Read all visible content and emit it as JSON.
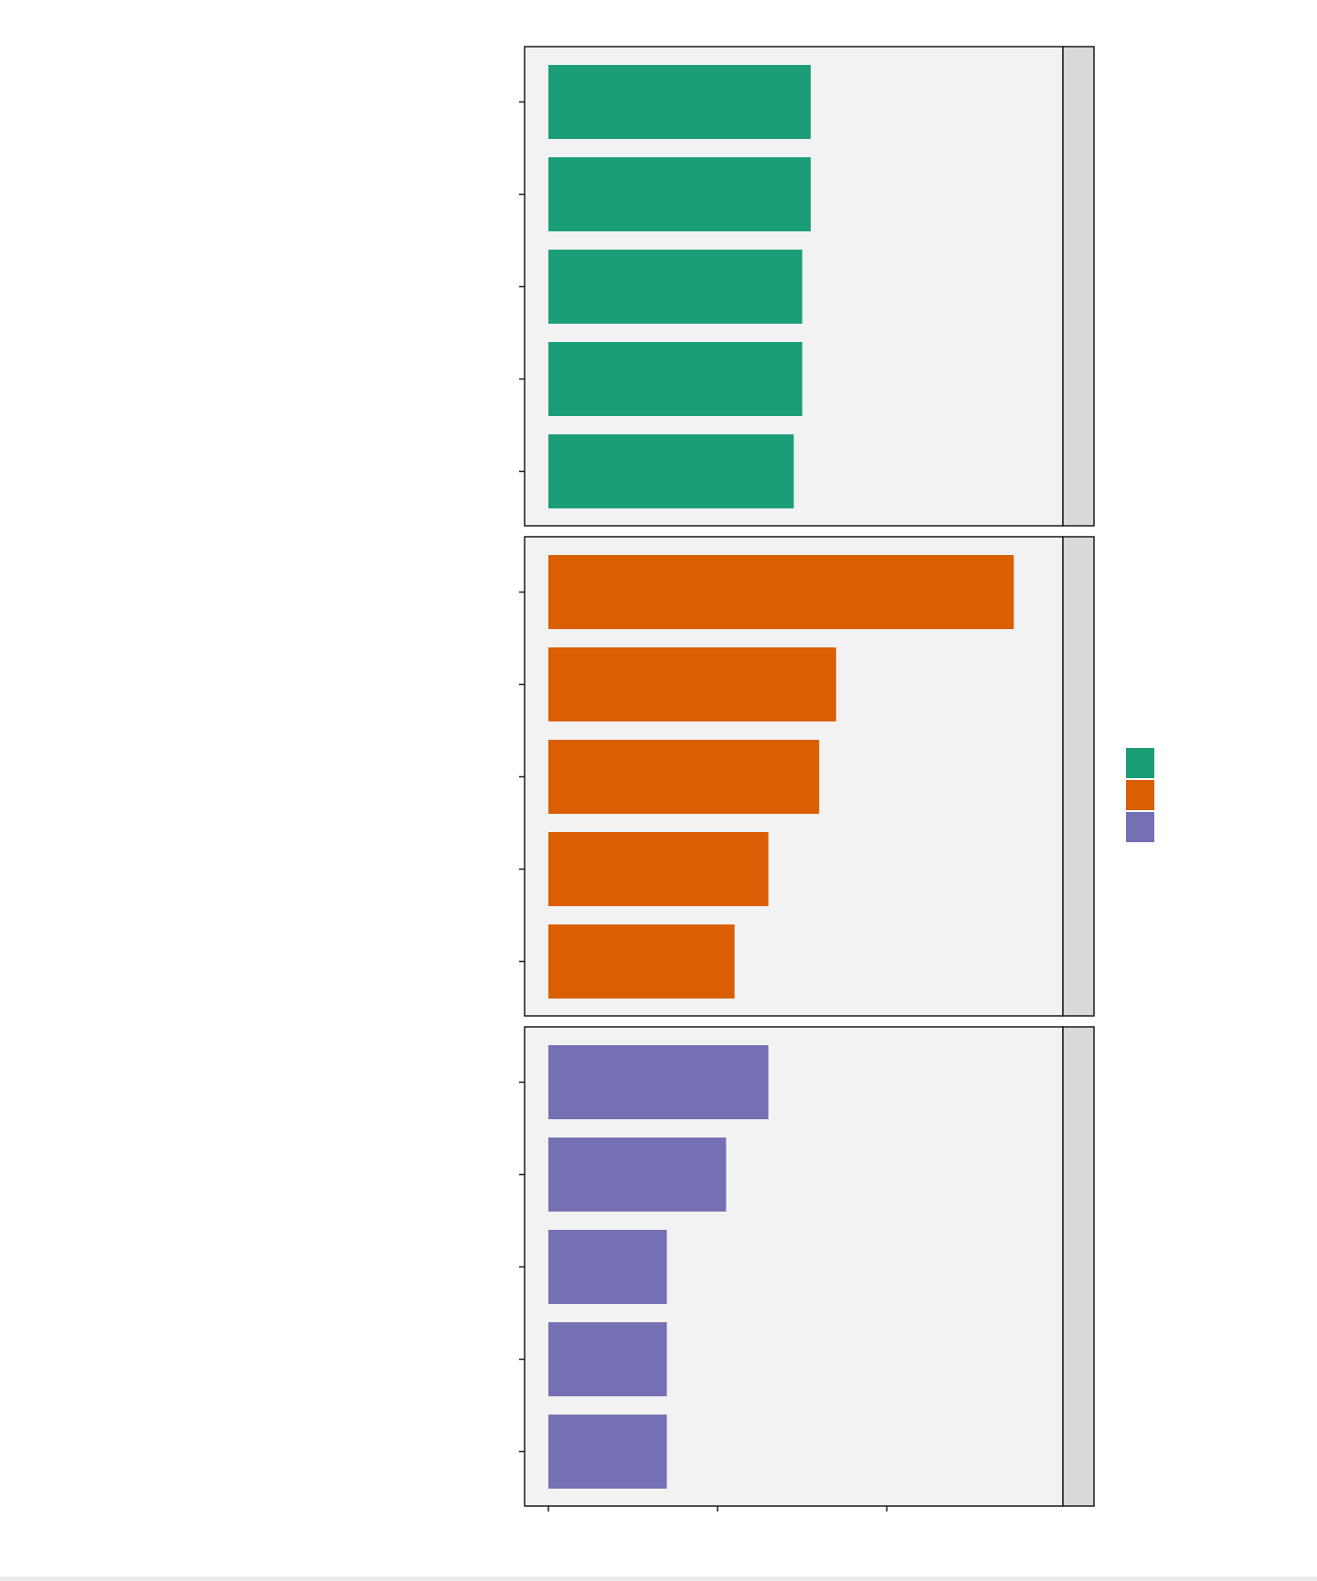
{
  "chart_data": {
    "type": "bar",
    "orientation": "horizontal",
    "facet": "rows",
    "x_range": [
      0,
      2.9
    ],
    "x_ticks": 3,
    "grid": false,
    "legend_position": "right",
    "panels": [
      {
        "color": "#1b9e77",
        "values": [
          1.55,
          1.55,
          1.5,
          1.5,
          1.45
        ]
      },
      {
        "color": "#d95f02",
        "values": [
          2.75,
          1.7,
          1.6,
          1.3,
          1.1
        ]
      },
      {
        "color": "#7570b3",
        "values": [
          1.3,
          1.05,
          0.7,
          0.7,
          0.7
        ]
      }
    ],
    "legend": {
      "swatches": [
        "#1b9e77",
        "#d95f02",
        "#7570b3"
      ]
    }
  }
}
